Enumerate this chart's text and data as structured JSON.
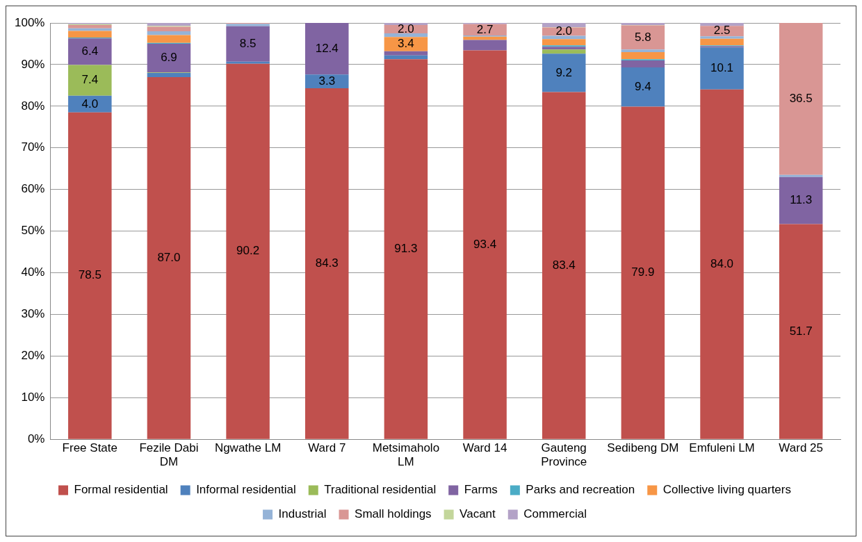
{
  "chart_data": {
    "type": "bar",
    "stacked": true,
    "categories": [
      "Free State",
      "Fezile Dabi DM",
      "Ngwathe LM",
      "Ward 7",
      "Metsimaholo LM",
      "Ward 14",
      "Gauteng Province",
      "Sedibeng DM",
      "Emfuleni LM",
      "Ward 25"
    ],
    "series": [
      {
        "name": "Formal residential",
        "color": "#c0504d",
        "values": [
          78.5,
          87.0,
          90.2,
          84.3,
          91.3,
          93.4,
          83.4,
          79.9,
          84.0,
          51.7
        ],
        "value_labels": [
          "78.5",
          "87.0",
          "90.2",
          "84.3",
          "91.3",
          "93.4",
          "83.4",
          "79.9",
          "84.0",
          "51.7"
        ]
      },
      {
        "name": "Informal residential",
        "color": "#4f81bd",
        "values": [
          4.0,
          1.0,
          0.5,
          3.3,
          0.9,
          0,
          9.2,
          9.4,
          10.1,
          0
        ],
        "value_labels": [
          "4.0",
          null,
          null,
          "3.3",
          null,
          null,
          "9.2",
          "9.4",
          "10.1",
          null
        ]
      },
      {
        "name": "Traditional residential",
        "color": "#9bbb59",
        "values": [
          7.4,
          0.1,
          0,
          0,
          0,
          0,
          1.0,
          null,
          0,
          0
        ],
        "value_labels": [
          "7.4",
          null,
          null,
          null,
          null,
          null,
          null,
          null,
          null,
          null
        ]
      },
      {
        "name": "Farms",
        "color": "#8064a2",
        "values": [
          6.4,
          6.9,
          8.5,
          12.4,
          1.0,
          2.5,
          0.7,
          1.7,
          0.3,
          11.3
        ],
        "value_labels": [
          "6.4",
          "6.9",
          "8.5",
          "12.4",
          null,
          null,
          null,
          null,
          null,
          "11.3"
        ]
      },
      {
        "name": "Parks and recreation",
        "color": "#4bacc6",
        "values": [
          0.2,
          0.2,
          0,
          0,
          null,
          0,
          0.3,
          0.3,
          0.2,
          0
        ],
        "value_labels": [
          null,
          null,
          null,
          null,
          null,
          null,
          null,
          null,
          null,
          null
        ]
      },
      {
        "name": "Collective living quarters",
        "color": "#f79646",
        "values": [
          1.6,
          1.9,
          null,
          0,
          3.4,
          0.8,
          1.5,
          1.7,
          1.6,
          0
        ],
        "value_labels": [
          null,
          null,
          null,
          null,
          "3.4",
          null,
          null,
          null,
          null,
          null
        ]
      },
      {
        "name": "Industrial",
        "color": "#95b3d7",
        "values": [
          0.6,
          0.9,
          0.6,
          0,
          0.9,
          0.3,
          0.8,
          0.6,
          0.6,
          0.5
        ],
        "value_labels": [
          null,
          null,
          null,
          null,
          null,
          null,
          null,
          null,
          null,
          null
        ]
      },
      {
        "name": "Small holdings",
        "color": "#d99694",
        "values": [
          0.8,
          1.1,
          0.2,
          0,
          2.0,
          2.7,
          2.0,
          5.8,
          2.5,
          36.5
        ],
        "value_labels": [
          null,
          null,
          null,
          null,
          "2.0",
          "2.7",
          "2.0",
          "5.8",
          "2.5",
          "36.5"
        ]
      },
      {
        "name": "Vacant",
        "color": "#c3d69b",
        "values": [
          0.2,
          0.2,
          0,
          0,
          0,
          0,
          0.1,
          0.1,
          0,
          0
        ],
        "value_labels": [
          null,
          null,
          null,
          null,
          null,
          null,
          null,
          null,
          null,
          null
        ]
      },
      {
        "name": "Commercial",
        "color": "#b3a2c7",
        "values": [
          0.3,
          0.7,
          null,
          0,
          0.5,
          0.3,
          1.0,
          0.5,
          0.7,
          0
        ],
        "value_labels": [
          null,
          null,
          null,
          null,
          null,
          null,
          null,
          null,
          null,
          null
        ]
      }
    ],
    "ylim": [
      0,
      100
    ],
    "yticks": [
      {
        "value": 0,
        "label": "0%"
      },
      {
        "value": 10,
        "label": "10%"
      },
      {
        "value": 20,
        "label": "20%"
      },
      {
        "value": 30,
        "label": "30%"
      },
      {
        "value": 40,
        "label": "40%"
      },
      {
        "value": 50,
        "label": "50%"
      },
      {
        "value": 60,
        "label": "60%"
      },
      {
        "value": 70,
        "label": "70%"
      },
      {
        "value": 80,
        "label": "80%"
      },
      {
        "value": 90,
        "label": "90%"
      },
      {
        "value": 100,
        "label": "100%"
      }
    ],
    "grid": "y",
    "legend": "bottom"
  }
}
